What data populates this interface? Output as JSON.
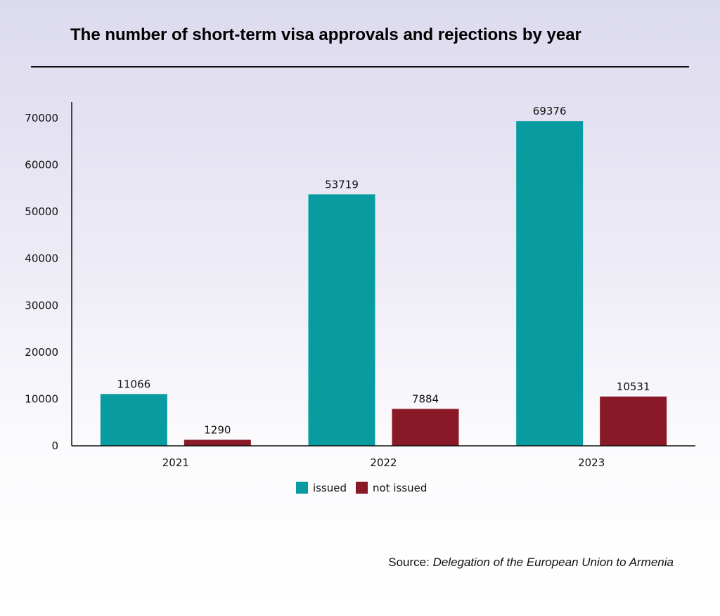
{
  "title": "The number of short-term visa approvals and rejections by year",
  "source": {
    "label": "Source:",
    "name": "Delegation of the European Union to Armenia"
  },
  "colors": {
    "issued": "#089ca1",
    "not_issued": "#8a1927",
    "axis": "#111111"
  },
  "chart_data": {
    "type": "bar",
    "categories": [
      "2021",
      "2022",
      "2023"
    ],
    "series": [
      {
        "name": "issued",
        "values": [
          11066,
          53719,
          69376
        ]
      },
      {
        "name": "not issued",
        "values": [
          1290,
          7884,
          10531
        ]
      }
    ],
    "ylim": [
      0,
      70000
    ],
    "yticks": [
      0,
      10000,
      20000,
      30000,
      40000,
      50000,
      60000,
      70000
    ],
    "grid": false,
    "legend_position": "bottom-center",
    "data_labels": true
  }
}
